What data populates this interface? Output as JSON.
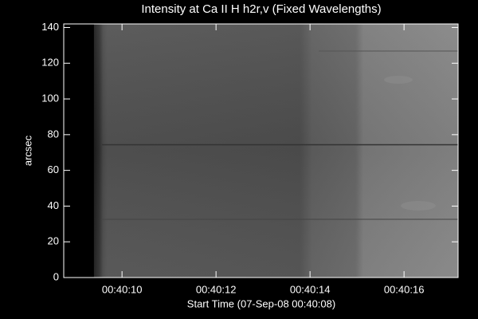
{
  "chart_data": {
    "type": "image",
    "title": "Intensity at Ca II H h2r,v (Fixed Wavelengths)",
    "x_label": "Start Time (07-Sep-08 00:40:08)",
    "y_label": "arcsec",
    "xlim": [
      8.76,
      17.15
    ],
    "xticks": [
      {
        "value": 10,
        "label": "00:40:10"
      },
      {
        "value": 12,
        "label": "00:40:12"
      },
      {
        "value": 14,
        "label": "00:40:14"
      },
      {
        "value": 16,
        "label": "00:40:16"
      }
    ],
    "ylim": [
      0,
      142
    ],
    "yticks": [
      0,
      20,
      40,
      60,
      80,
      100,
      120,
      140
    ]
  }
}
